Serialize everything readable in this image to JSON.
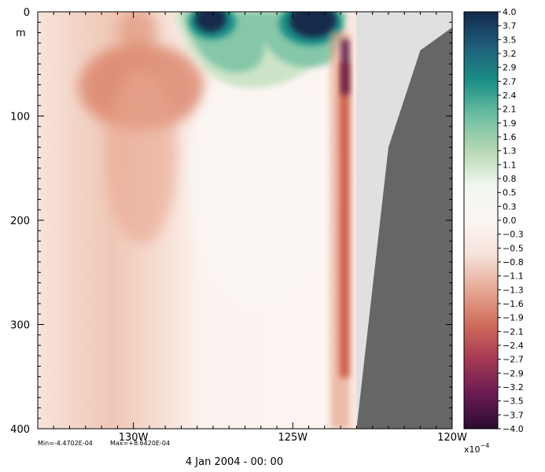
{
  "chart_data": {
    "type": "heatmap",
    "title": "",
    "xlabel": "",
    "ylabel": "m",
    "x_unit": "degrees longitude (W)",
    "y_unit": "m",
    "xlim": [
      133,
      120
    ],
    "ylim": [
      400,
      0
    ],
    "x_ticks": [
      {
        "value": 130,
        "label": "130W"
      },
      {
        "value": 125,
        "label": "125W"
      },
      {
        "value": 120,
        "label": "120W"
      }
    ],
    "y_ticks": [
      {
        "value": 0,
        "label": "0"
      },
      {
        "value": 100,
        "label": "100"
      },
      {
        "value": 200,
        "label": "200"
      },
      {
        "value": 300,
        "label": "300"
      },
      {
        "value": 400,
        "label": "400"
      }
    ],
    "colorbar": {
      "min": -4.0,
      "max": 4.0,
      "scale_label": "x10",
      "scale_exponent": "−4",
      "tick_labels": [
        "4.0",
        "3.7",
        "3.5",
        "3.2",
        "2.9",
        "2.7",
        "2.4",
        "2.1",
        "1.9",
        "1.6",
        "1.3",
        "1.1",
        "0.8",
        "0.5",
        "0.3",
        "0.0",
        "−0.3",
        "−0.5",
        "−0.8",
        "−1.1",
        "−1.3",
        "−1.6",
        "−1.9",
        "−2.1",
        "−2.4",
        "−2.7",
        "−2.9",
        "−3.2",
        "−3.5",
        "−3.7",
        "−4.0"
      ],
      "colors": [
        "#2a0c30",
        "#6a1b52",
        "#a43a55",
        "#cf6c5c",
        "#e7a995",
        "#f6e2da",
        "#fbf6f2",
        "#f2f7ef",
        "#b6d8b4",
        "#6fbea2",
        "#1c8f86",
        "#1f5d7a",
        "#142a4c"
      ]
    },
    "stats": {
      "min_text": "Min=-4.4702E-04",
      "max_text": "Max=+8.6420E-04",
      "min": -0.00044702,
      "max": 0.0008642
    },
    "date_label": "4 Jan 2004 - 00: 00",
    "field_features": [
      {
        "desc": "positive core near surface",
        "lon": 127.0,
        "depth": 12,
        "value": 4.0
      },
      {
        "desc": "positive core near surface",
        "lon": 124.0,
        "depth": 15,
        "value": 4.0
      },
      {
        "desc": "negative band near coast",
        "lon": 123.2,
        "depth": 120,
        "value": -2.2
      },
      {
        "desc": "negative lobe",
        "lon": 130.7,
        "depth": 80,
        "value": -1.6
      }
    ],
    "land_mask": [
      {
        "lon": 123.0,
        "depth": 400
      },
      {
        "lon": 122.0,
        "depth": 130
      },
      {
        "lon": 121.0,
        "depth": 37
      },
      {
        "lon": 120.0,
        "depth": 15
      }
    ],
    "land_fill_color": "#666666",
    "nodata_fill_color": "#e0e0e0",
    "nodata_lon_min": 123.0
  }
}
